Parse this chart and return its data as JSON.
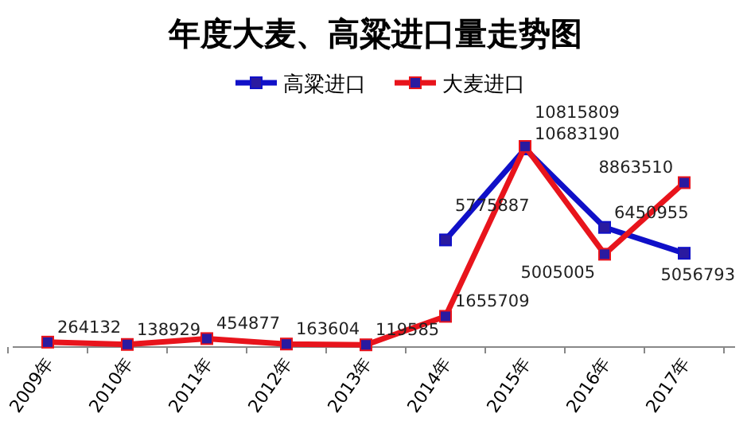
{
  "chart_data": {
    "type": "line",
    "title": "年度大麦、高粱进口量走势图",
    "categories": [
      "2009年",
      "2010年",
      "2011年",
      "2012年",
      "2013年",
      "2014年",
      "2015年",
      "2016年",
      "2017年"
    ],
    "series": [
      {
        "name": "高粱进口",
        "color": "#1010c8",
        "values": [
          null,
          null,
          null,
          null,
          null,
          5775887,
          10683190,
          6450955,
          5056793
        ]
      },
      {
        "name": "大麦进口",
        "color": "#e8141c",
        "values": [
          264132,
          138929,
          454877,
          163604,
          119585,
          1655709,
          10815809,
          5005005,
          8863510
        ]
      }
    ],
    "data_labels": true,
    "legend": "top",
    "marker": "square",
    "line_style": "solid"
  }
}
